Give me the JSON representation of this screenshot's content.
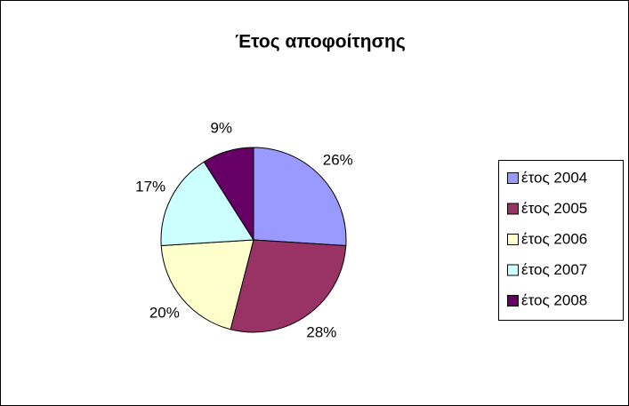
{
  "chart_data": {
    "type": "pie",
    "title": "Έτος αποφοίτησης",
    "categories": [
      "έτος 2004",
      "έτος 2005",
      "έτος 2006",
      "έτος 2007",
      "έτος 2008"
    ],
    "values": [
      26,
      28,
      20,
      17,
      9
    ],
    "value_labels": [
      "26%",
      "28%",
      "20%",
      "17%",
      "9%"
    ],
    "colors": [
      "#9999ff",
      "#993366",
      "#ffffcc",
      "#ccffff",
      "#660066"
    ],
    "legend": "right"
  }
}
